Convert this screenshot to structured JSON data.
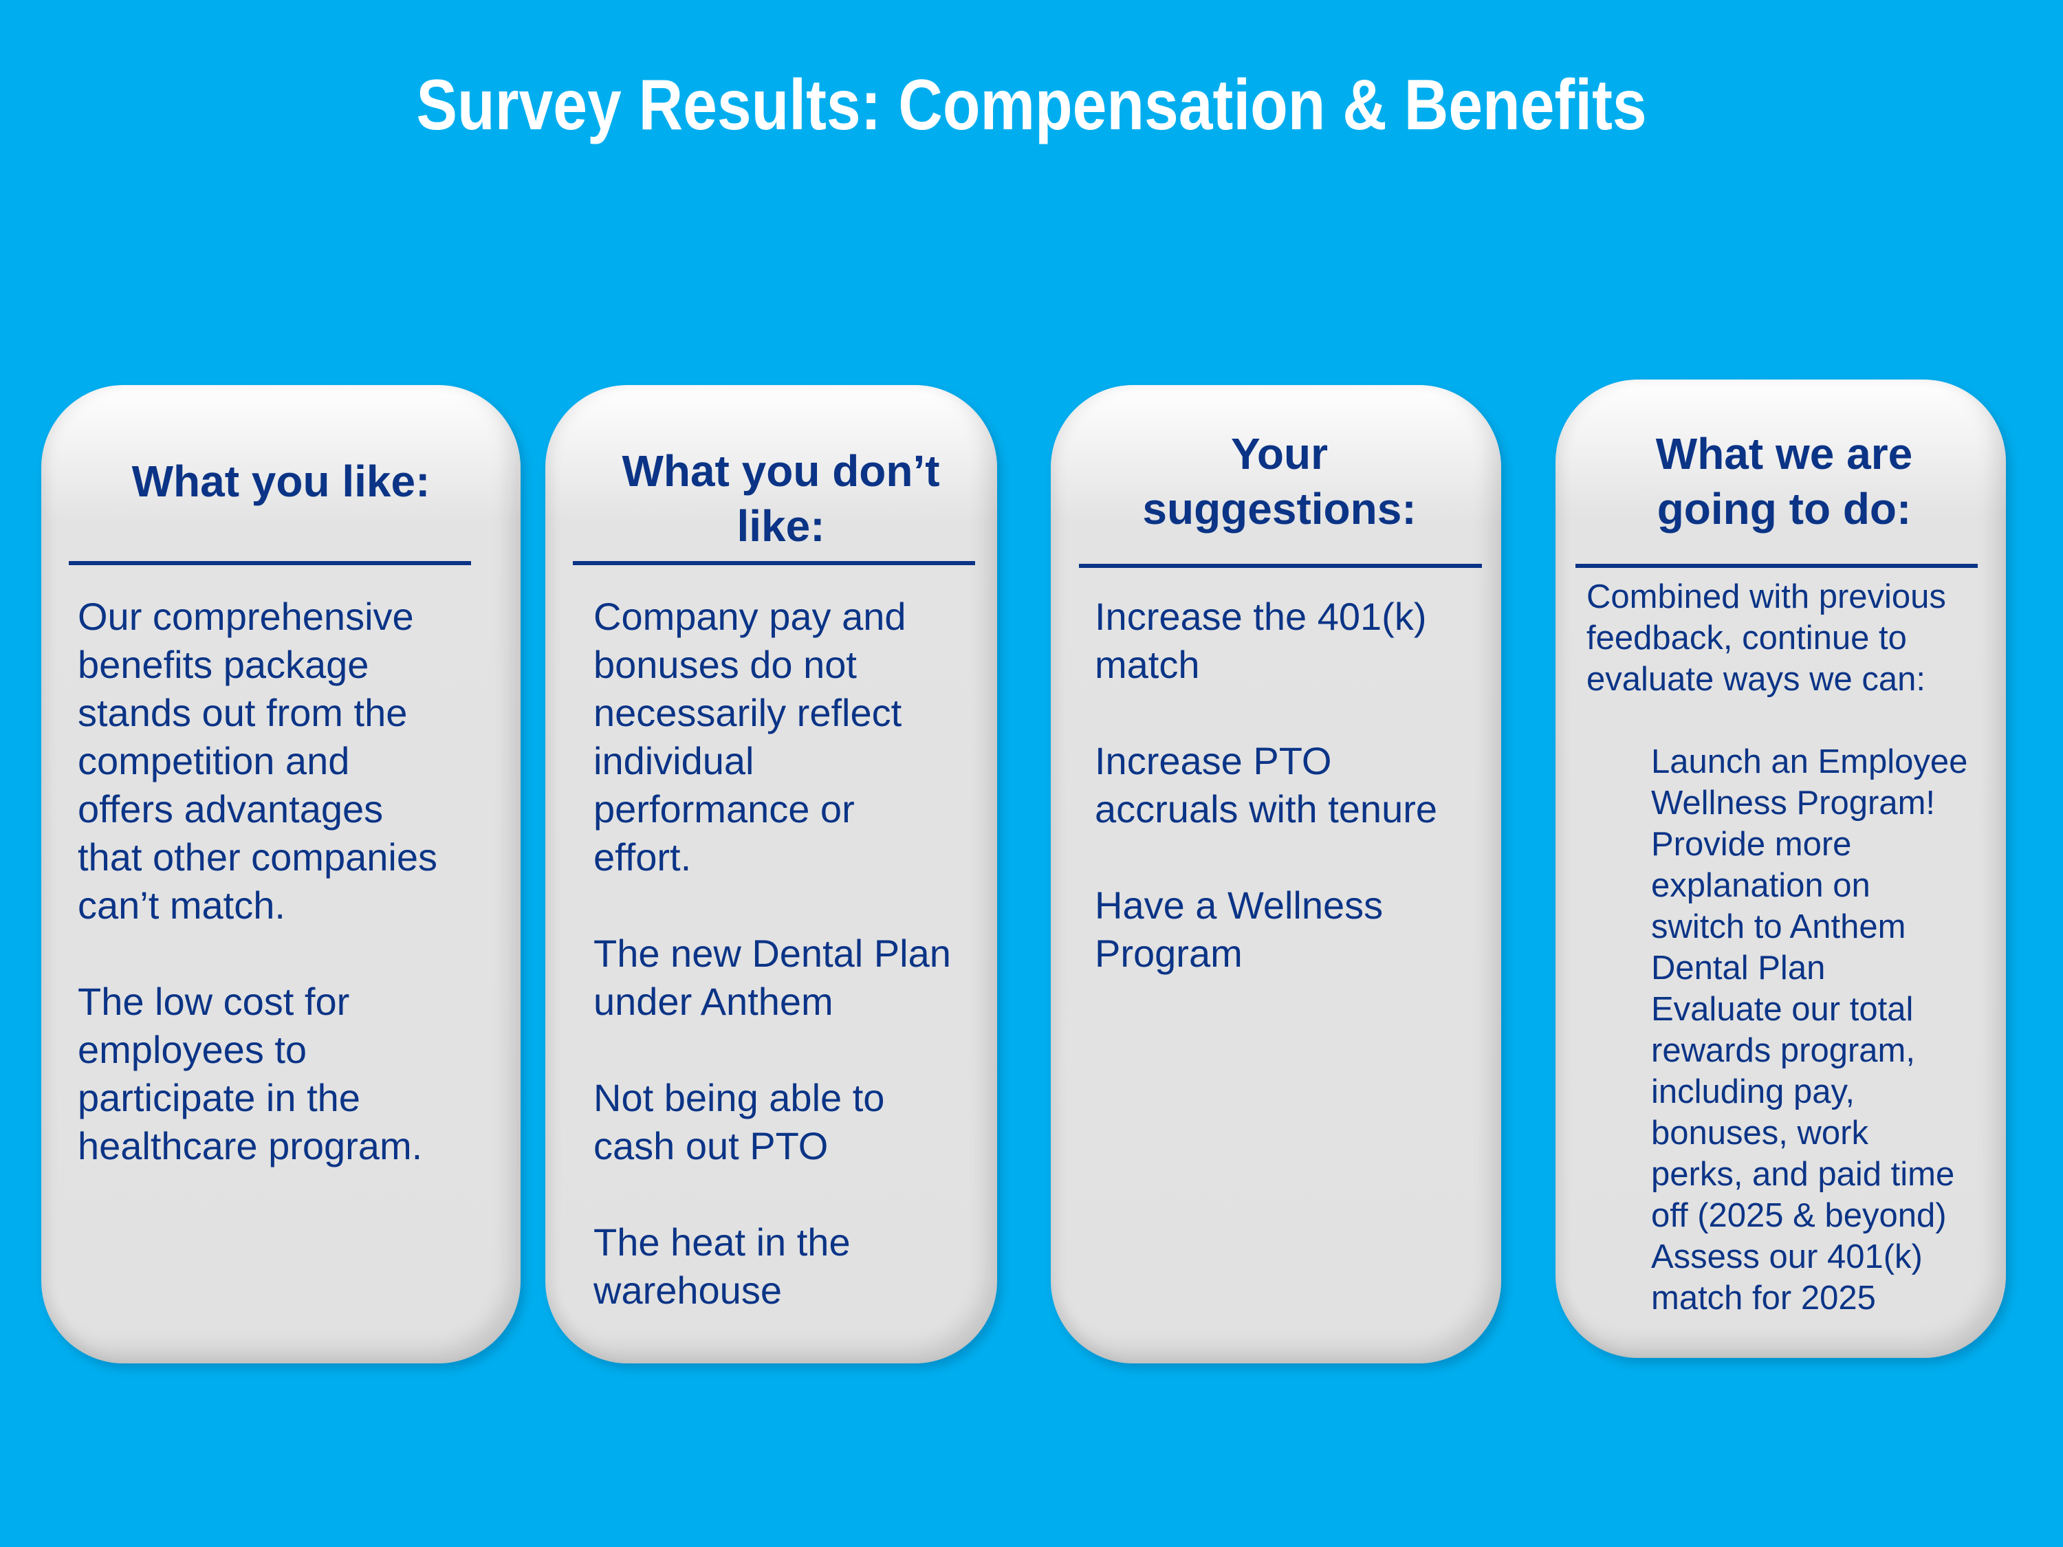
{
  "title": "Survey Results: Compensation & Benefits",
  "colors": {
    "background": "#00AEEF",
    "text": "#0B3486",
    "card": "#E1E1E1"
  },
  "cards": [
    {
      "heading": [
        "What you like:"
      ],
      "lines": [
        "Our comprehensive",
        "benefits package",
        "stands out from the",
        "competition and",
        "offers advantages",
        "that other companies",
        "can’t match.",
        "",
        "The low cost for",
        "employees to",
        "participate in the",
        "healthcare program."
      ]
    },
    {
      "heading": [
        "What you don’t",
        "like:"
      ],
      "lines": [
        "Company pay and",
        "bonuses do not",
        "necessarily reflect",
        "individual",
        "performance or",
        "effort.",
        "",
        "The new Dental Plan",
        "under Anthem",
        "",
        "Not being able to",
        "cash out PTO",
        "",
        "The heat in the",
        "warehouse"
      ]
    },
    {
      "heading": [
        "Your",
        "suggestions:"
      ],
      "lines": [
        "Increase the 401(k)",
        "match",
        "",
        "Increase PTO",
        "accruals with tenure",
        "",
        "Have a Wellness",
        "Program"
      ]
    },
    {
      "heading": [
        "What we are",
        "going to do:"
      ],
      "intro": [
        "Combined with previous",
        "feedback, continue to",
        "evaluate ways we can:"
      ],
      "items": [
        {
          "marker": "✓",
          "icon": "checkmark-icon",
          "lines": [
            "Launch an Employee",
            "Wellness Program!"
          ]
        },
        {
          "marker": "•",
          "icon": "bullet-icon",
          "lines": [
            "Provide more",
            "explanation on",
            "switch to Anthem",
            "Dental Plan"
          ]
        },
        {
          "marker": "•",
          "icon": "bullet-icon",
          "lines": [
            "Evaluate our total",
            "rewards program,",
            "including pay,",
            "bonuses, work",
            "perks, and paid time",
            "off (2025 & beyond)"
          ]
        },
        {
          "marker": "•",
          "icon": "bullet-icon",
          "lines": [
            "Assess our 401(k)",
            "match for 2025"
          ]
        }
      ]
    }
  ]
}
